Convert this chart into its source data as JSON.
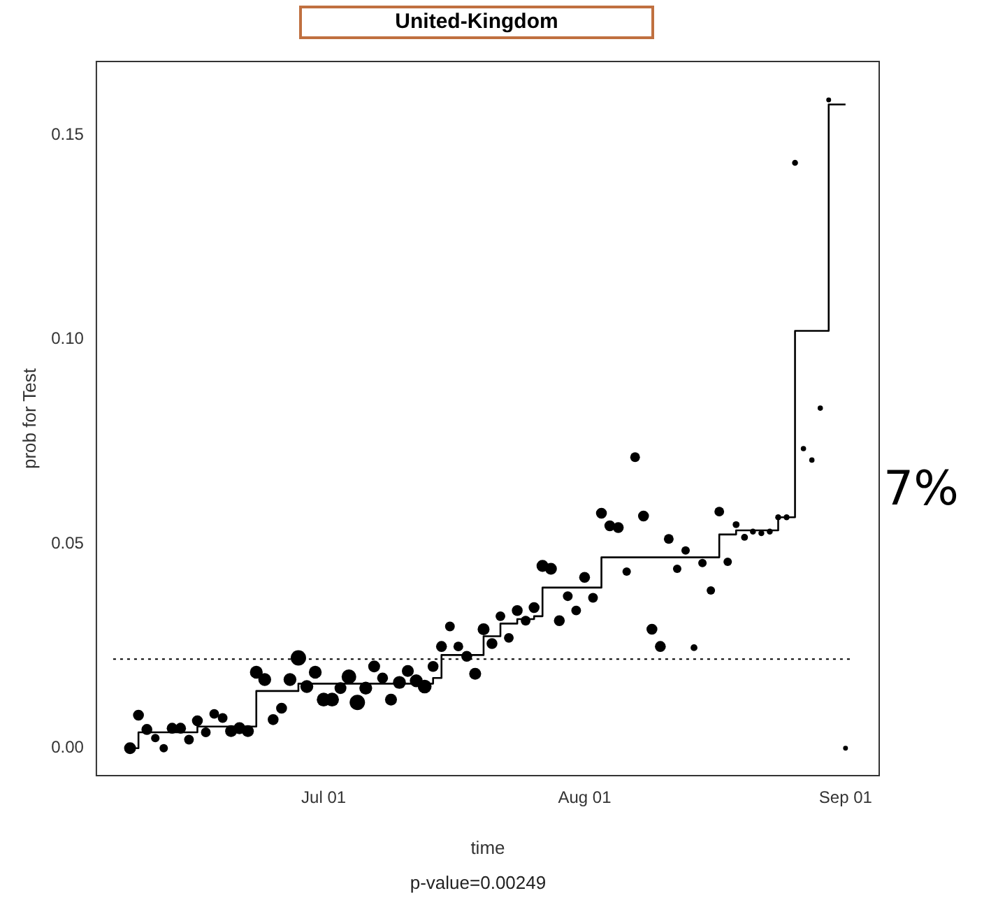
{
  "chart_data": {
    "type": "scatter",
    "title": "United-Kingdom",
    "xlabel": "time",
    "ylabel": "prob for Test",
    "annotations": [
      "p-value=0.00249",
      "7%"
    ],
    "xlim": [
      "--06-04",
      "--09-05"
    ],
    "xticks": [
      {
        "value": "--07-01",
        "label": "Jul 01"
      },
      {
        "value": "--08-01",
        "label": "Aug 01"
      },
      {
        "value": "--09-01",
        "label": "Sep 01"
      }
    ],
    "ylim": [
      -0.0067,
      0.168
    ],
    "yticks": [
      {
        "value": 0,
        "label": "0.00"
      },
      {
        "value": 0.05,
        "label": "0.05"
      },
      {
        "value": 0.1,
        "label": "0.10"
      },
      {
        "value": 0.15,
        "label": "0.15"
      }
    ],
    "grid": false,
    "legend": false,
    "ref_lines": [
      {
        "axis": "y",
        "value": 0.0218,
        "color": "#000000",
        "line_style": "dotted"
      }
    ],
    "series": [
      {
        "type": "bubble",
        "color": "#000000",
        "x": [
          "--06-08",
          "--06-09",
          "--06-10",
          "--06-11",
          "--06-12",
          "--06-13",
          "--06-14",
          "--06-15",
          "--06-16",
          "--06-17",
          "--06-18",
          "--06-19",
          "--06-20",
          "--06-21",
          "--06-22",
          "--06-23",
          "--06-24",
          "--06-25",
          "--06-26",
          "--06-27",
          "--06-28",
          "--06-29",
          "--06-30",
          "--07-01",
          "--07-02",
          "--07-03",
          "--07-04",
          "--07-05",
          "--07-06",
          "--07-07",
          "--07-08",
          "--07-09",
          "--07-10",
          "--07-11",
          "--07-12",
          "--07-13",
          "--07-14",
          "--07-15",
          "--07-16",
          "--07-17",
          "--07-18",
          "--07-19",
          "--07-20",
          "--07-21",
          "--07-22",
          "--07-23",
          "--07-24",
          "--07-25",
          "--07-26",
          "--07-27",
          "--07-28",
          "--07-29",
          "--07-30",
          "--07-31",
          "--08-01",
          "--08-02",
          "--08-03",
          "--08-04",
          "--08-05",
          "--08-06",
          "--08-07",
          "--08-08",
          "--08-09",
          "--08-10",
          "--08-11",
          "--08-12",
          "--08-13",
          "--08-14",
          "--08-15",
          "--08-16",
          "--08-17",
          "--08-18",
          "--08-19",
          "--08-20",
          "--08-21",
          "--08-22",
          "--08-23",
          "--08-24",
          "--08-25",
          "--08-26",
          "--08-27",
          "--08-28",
          "--08-29",
          "--08-30",
          "--09-01"
        ],
        "values": [
          0.0,
          0.0081,
          0.0046,
          0.0025,
          0.0,
          0.0049,
          0.0049,
          0.0021,
          0.0067,
          0.0039,
          0.0084,
          0.0074,
          0.0042,
          0.0049,
          0.0042,
          0.0186,
          0.0168,
          0.007,
          0.0098,
          0.0168,
          0.0221,
          0.0151,
          0.0186,
          0.0119,
          0.0119,
          0.0147,
          0.0175,
          0.0112,
          0.0147,
          0.02,
          0.0172,
          0.0119,
          0.0161,
          0.0189,
          0.0165,
          0.0151,
          0.02,
          0.0249,
          0.0298,
          0.0249,
          0.0225,
          0.0182,
          0.0291,
          0.0256,
          0.0323,
          0.027,
          0.0337,
          0.0312,
          0.0344,
          0.0446,
          0.0439,
          0.0312,
          0.0372,
          0.0337,
          0.0418,
          0.0368,
          0.0575,
          0.0544,
          0.054,
          0.0432,
          0.0712,
          0.0568,
          0.0291,
          0.0249,
          0.0512,
          0.0439,
          0.0484,
          0.0246,
          0.0453,
          0.0386,
          0.0579,
          0.0456,
          0.0547,
          0.0516,
          0.053,
          0.0526,
          0.053,
          0.0565,
          0.0565,
          0.1432,
          0.0733,
          0.0705,
          0.0832,
          0.1586,
          0.0
        ],
        "sizes": [
          0.6,
          0.5,
          0.5,
          0.3,
          0.3,
          0.5,
          0.5,
          0.4,
          0.5,
          0.4,
          0.4,
          0.4,
          0.6,
          0.6,
          0.6,
          0.7,
          0.7,
          0.5,
          0.5,
          0.7,
          1.0,
          0.7,
          0.7,
          0.8,
          0.8,
          0.6,
          0.9,
          1.0,
          0.7,
          0.6,
          0.5,
          0.6,
          0.7,
          0.6,
          0.7,
          0.8,
          0.5,
          0.5,
          0.4,
          0.4,
          0.5,
          0.6,
          0.6,
          0.5,
          0.4,
          0.4,
          0.5,
          0.4,
          0.5,
          0.6,
          0.6,
          0.5,
          0.4,
          0.4,
          0.5,
          0.4,
          0.5,
          0.5,
          0.5,
          0.3,
          0.4,
          0.5,
          0.5,
          0.5,
          0.4,
          0.3,
          0.3,
          0.2,
          0.3,
          0.3,
          0.4,
          0.3,
          0.2,
          0.2,
          0.15,
          0.15,
          0.15,
          0.15,
          0.15,
          0.15,
          0.12,
          0.12,
          0.12,
          0.1,
          0.1
        ]
      },
      {
        "type": "step",
        "color": "#000000",
        "x": [
          "--06-08",
          "--06-09",
          "--06-16",
          "--06-23",
          "--06-28",
          "--07-14",
          "--07-15",
          "--07-20",
          "--07-22",
          "--07-24",
          "--07-26",
          "--07-27",
          "--08-03",
          "--08-17",
          "--08-19",
          "--08-24",
          "--08-26",
          "--08-30",
          "--09-01"
        ],
        "values": [
          0,
          0.0039,
          0.0053,
          0.014,
          0.0158,
          0.0172,
          0.0228,
          0.0274,
          0.0305,
          0.0316,
          0.0323,
          0.0393,
          0.0467,
          0.0523,
          0.0533,
          0.0565,
          0.1021,
          0.1575,
          0.1575
        ]
      }
    ]
  }
}
